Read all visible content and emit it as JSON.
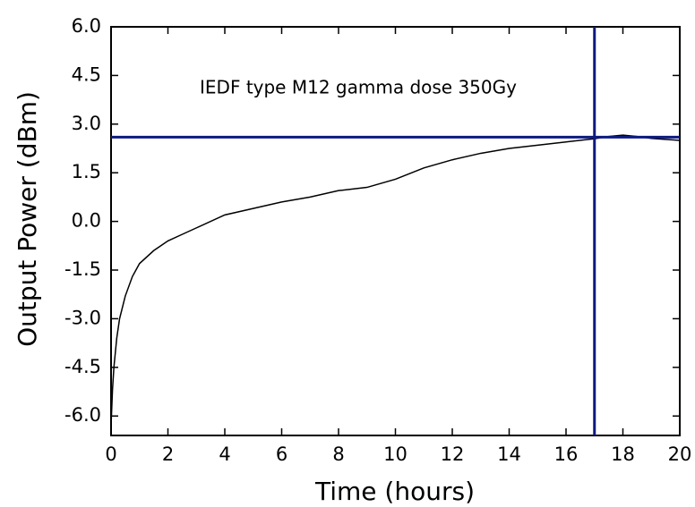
{
  "chart_data": {
    "type": "line",
    "annotation": "IEDF type M12 gamma dose 350Gy",
    "x_label": "Time (hours)",
    "y_label": "Output Power (dBm)",
    "x": [
      0,
      0.05,
      0.1,
      0.2,
      0.3,
      0.5,
      0.75,
      1,
      1.5,
      2,
      2.5,
      3,
      4,
      5,
      6,
      7,
      8,
      9,
      10,
      11,
      12,
      13,
      14,
      15,
      16,
      17,
      17.5,
      18,
      18.5,
      19,
      20
    ],
    "values": [
      -6.3,
      -5.2,
      -4.5,
      -3.6,
      -3.0,
      -2.3,
      -1.7,
      -1.3,
      -0.9,
      -0.6,
      -0.4,
      -0.2,
      0.2,
      0.4,
      0.6,
      0.75,
      0.95,
      1.05,
      1.3,
      1.65,
      1.9,
      2.1,
      2.25,
      2.35,
      2.45,
      2.55,
      2.62,
      2.66,
      2.62,
      2.56,
      2.5
    ],
    "color": "#000000",
    "hline": 2.6,
    "vline": 17,
    "ref_color": "#0d1a80",
    "xlim": [
      0,
      20
    ],
    "xticks": [
      0,
      2,
      4,
      6,
      8,
      10,
      12,
      14,
      16,
      18,
      20
    ],
    "ylim": [
      -6.6,
      6.0
    ],
    "yticks": [
      {
        "value": 6.0,
        "label": "6.0"
      },
      {
        "value": 4.5,
        "label": "4.5"
      },
      {
        "value": 3.0,
        "label": "3.0"
      },
      {
        "value": 1.5,
        "label": "1.5"
      },
      {
        "value": 0.0,
        "label": "0.0"
      },
      {
        "value": -1.5,
        "label": "-1.5"
      },
      {
        "value": -3.0,
        "label": "-3.0"
      },
      {
        "value": -4.5,
        "label": "-4.5"
      },
      {
        "value": -6.0,
        "label": "-6.0"
      }
    ]
  }
}
